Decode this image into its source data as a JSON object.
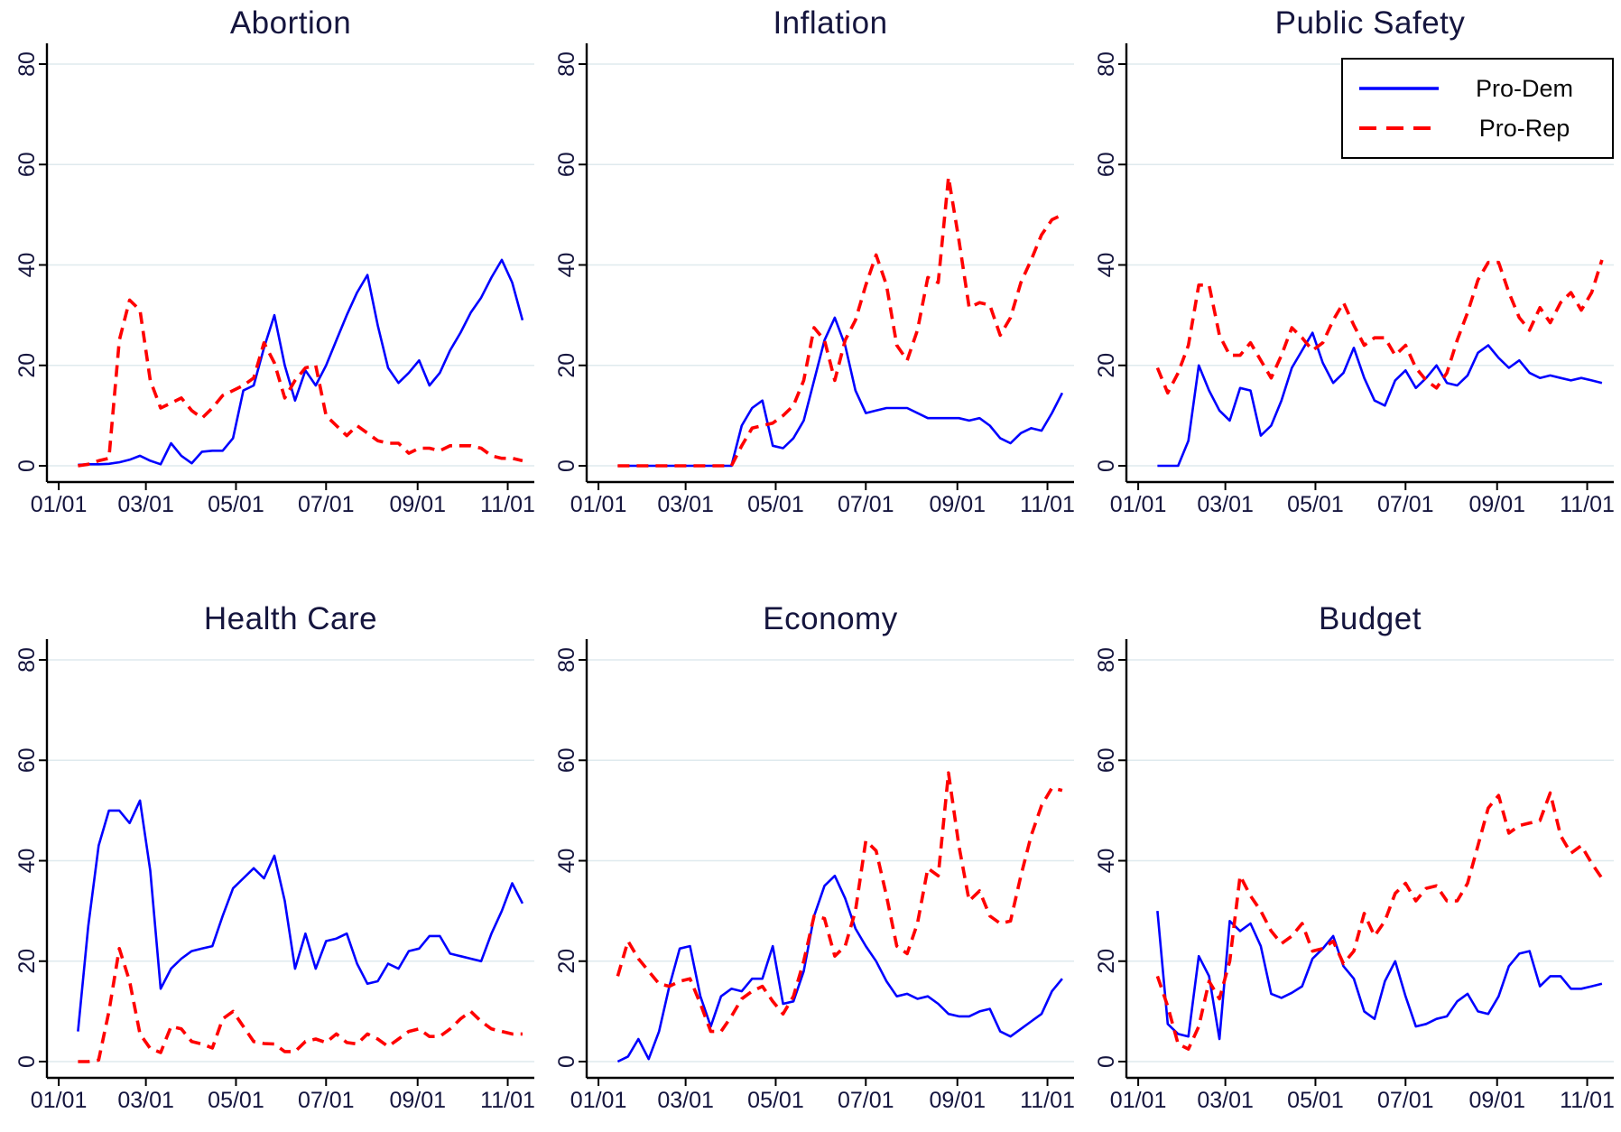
{
  "page": {
    "background": "#ffffff"
  },
  "legend": {
    "items": [
      {
        "label": "Pro-Dem",
        "color": "#0000ff",
        "line_style": "solid"
      },
      {
        "label": "Pro-Rep",
        "color": "#ff0000",
        "line_style": "dashed"
      }
    ]
  },
  "axes": {
    "y_ticks": [
      0,
      20,
      40,
      60,
      80
    ],
    "y_max": 84,
    "x_tick_labels": [
      "01/01",
      "03/01",
      "05/01",
      "07/01",
      "09/01",
      "11/01"
    ],
    "x_tick_days": [
      0,
      59,
      120,
      181,
      243,
      304
    ],
    "grid": "horizontal",
    "grid_color": "#dfeaee",
    "text_color": "#15153e"
  },
  "chart_data": [
    {
      "type": "line",
      "title": "Abortion",
      "x_unit": "day of year (weekly samples)",
      "start_day": 13,
      "step_days": 7,
      "ylim": [
        0,
        84
      ],
      "series": [
        {
          "name": "Pro-Dem",
          "values": [
            0.2,
            0.3,
            0.3,
            0.4,
            0.7,
            1.2,
            2,
            1,
            0.3,
            4.5,
            2,
            0.5,
            2.8,
            3,
            3,
            5.5,
            15,
            16,
            23.5,
            30,
            20,
            13,
            19,
            16,
            20,
            25,
            30,
            34.5,
            38,
            28,
            19.5,
            16.5,
            18.5,
            21,
            16,
            18.5,
            23,
            26.5,
            30.5,
            33.5,
            37.5,
            41,
            36.5,
            29
          ]
        },
        {
          "name": "Pro-Rep",
          "values": [
            0,
            0.3,
            1,
            1.5,
            25,
            33,
            31,
            17,
            11.5,
            12.5,
            13.5,
            11,
            9.5,
            11.5,
            14,
            15,
            16,
            17.5,
            24.5,
            20.5,
            13.5,
            17,
            19.5,
            20,
            10,
            8,
            6,
            8,
            6.5,
            5,
            4.5,
            4.5,
            2.5,
            3.5,
            3.5,
            3,
            4,
            4,
            4,
            3.5,
            2,
            1.5,
            1.5,
            1
          ]
        }
      ]
    },
    {
      "type": "line",
      "title": "Inflation",
      "x_unit": "day of year (weekly samples)",
      "start_day": 13,
      "step_days": 7,
      "ylim": [
        0,
        84
      ],
      "series": [
        {
          "name": "Pro-Dem",
          "values": [
            0,
            0,
            0,
            0,
            0,
            0,
            0,
            0,
            0,
            0,
            0,
            0,
            8,
            11.5,
            13,
            4,
            3.5,
            5.5,
            9,
            17,
            25,
            29.5,
            24,
            15,
            10.5,
            11,
            11.5,
            11.5,
            11.5,
            10.5,
            9.5,
            9.5,
            9.5,
            9.5,
            9,
            9.5,
            8,
            5.5,
            4.5,
            6.5,
            7.5,
            7,
            10.5,
            14.5
          ]
        },
        {
          "name": "Pro-Rep",
          "values": [
            0,
            0,
            0,
            0,
            0,
            0,
            0,
            0,
            0,
            0,
            0,
            0,
            4,
            7.5,
            8,
            8.5,
            10,
            12,
            17,
            27.5,
            25,
            17,
            25,
            29,
            36,
            42,
            36,
            24,
            21,
            27,
            37.5,
            36.5,
            57.5,
            45,
            31.5,
            32.5,
            32,
            26,
            29.5,
            36.5,
            41,
            46,
            49,
            50
          ]
        }
      ]
    },
    {
      "type": "line",
      "title": "Public Safety",
      "x_unit": "day of year (weekly samples)",
      "start_day": 13,
      "step_days": 7,
      "ylim": [
        0,
        84
      ],
      "has_legend": true,
      "series": [
        {
          "name": "Pro-Dem",
          "values": [
            0,
            0,
            0,
            5,
            20,
            15,
            11,
            9,
            15.5,
            15,
            6,
            8,
            13,
            19.5,
            23,
            26.5,
            20.5,
            16.5,
            18.5,
            23.5,
            17.5,
            13,
            12,
            17,
            19,
            15.5,
            17.5,
            20,
            16.5,
            16,
            18,
            22.5,
            24,
            21.5,
            19.5,
            21,
            18.5,
            17.5,
            18,
            17.5,
            17,
            17.5,
            17,
            16.5
          ]
        },
        {
          "name": "Pro-Rep",
          "values": [
            19.5,
            14.5,
            18.5,
            24,
            36,
            36,
            26,
            22,
            22,
            24.5,
            21,
            17.5,
            22,
            27.5,
            25.5,
            23,
            24.5,
            29,
            32.5,
            28,
            24,
            25.5,
            25.5,
            22,
            24,
            19.5,
            17,
            15.5,
            18.5,
            25,
            30.5,
            37,
            40.5,
            40.5,
            34.5,
            29.5,
            27,
            31.5,
            28.5,
            32.5,
            34.5,
            31,
            34.5,
            41
          ]
        }
      ]
    },
    {
      "type": "line",
      "title": "Health Care",
      "x_unit": "day of year (weekly samples)",
      "start_day": 13,
      "step_days": 7,
      "ylim": [
        0,
        84
      ],
      "series": [
        {
          "name": "Pro-Dem",
          "values": [
            6,
            27,
            43,
            50,
            50,
            47.5,
            52,
            38,
            14.5,
            18.5,
            20.5,
            22,
            22.5,
            23,
            29,
            34.5,
            36.5,
            38.5,
            36.5,
            41,
            32,
            18.5,
            25.5,
            18.5,
            24,
            24.5,
            25.5,
            19.5,
            15.5,
            16,
            19.5,
            18.5,
            22,
            22.5,
            25,
            25,
            21.5,
            21,
            20.5,
            20,
            25.5,
            30,
            35.5,
            31.5
          ]
        },
        {
          "name": "Pro-Rep",
          "values": [
            0,
            0,
            0.3,
            10,
            22.5,
            16,
            5.5,
            2.6,
            1.8,
            7,
            6.5,
            4,
            3.5,
            2.7,
            8.5,
            10,
            7,
            4,
            3.6,
            3.5,
            2,
            2,
            4,
            4.5,
            3.8,
            5.5,
            3.8,
            3.5,
            5.5,
            4.5,
            3,
            4.5,
            6,
            6.5,
            5,
            5,
            6.5,
            8.5,
            10,
            8,
            6.5,
            6,
            5.5,
            5.5
          ]
        }
      ]
    },
    {
      "type": "line",
      "title": "Economy",
      "x_unit": "day of year (weekly samples)",
      "start_day": 13,
      "step_days": 7,
      "ylim": [
        0,
        84
      ],
      "series": [
        {
          "name": "Pro-Dem",
          "values": [
            0,
            1,
            4.5,
            0.5,
            6,
            15,
            22.5,
            23,
            13,
            7,
            13,
            14.5,
            14,
            16.5,
            16.5,
            23,
            11.5,
            12,
            18,
            29,
            35,
            37,
            32.5,
            26.5,
            23,
            20,
            16,
            13,
            13.5,
            12.5,
            13,
            11.5,
            9.5,
            9,
            9,
            10,
            10.5,
            6,
            5,
            6.5,
            8,
            9.5,
            14,
            16.5
          ]
        },
        {
          "name": "Pro-Rep",
          "values": [
            17,
            24,
            20.5,
            18,
            15.5,
            15,
            16,
            16.5,
            11.5,
            6,
            6,
            9,
            12.5,
            14,
            15,
            12,
            9.5,
            13,
            20,
            29,
            28.5,
            21,
            23,
            30,
            44,
            42,
            33,
            23,
            21.5,
            27.5,
            38.5,
            37,
            57.5,
            43,
            32,
            34,
            29,
            27.5,
            28,
            37,
            45,
            51,
            54.5,
            54
          ]
        }
      ]
    },
    {
      "type": "line",
      "title": "Budget",
      "x_unit": "day of year (weekly samples)",
      "start_day": 13,
      "step_days": 7,
      "ylim": [
        0,
        84
      ],
      "series": [
        {
          "name": "Pro-Dem",
          "values": [
            30,
            7.5,
            5.5,
            5,
            21,
            17,
            4.5,
            28,
            26,
            27.5,
            23,
            13.5,
            12.7,
            13.7,
            15,
            20.5,
            22.5,
            25,
            19,
            16.5,
            10,
            8.5,
            16,
            20,
            13,
            7,
            7.5,
            8.5,
            9,
            12,
            13.5,
            10,
            9.5,
            13,
            19,
            21.5,
            22,
            15,
            17,
            17,
            14.5,
            14.5,
            15,
            15.5
          ]
        },
        {
          "name": "Pro-Rep",
          "values": [
            17,
            11,
            3.5,
            2.5,
            7,
            16,
            12.5,
            20,
            37,
            33,
            30,
            26,
            23.5,
            25,
            27.5,
            22,
            22.5,
            24,
            19.5,
            22,
            29.5,
            25,
            28,
            33.5,
            35.5,
            32,
            34.5,
            35,
            32,
            32,
            35.5,
            43,
            50.5,
            53,
            45.5,
            47,
            47.5,
            48,
            53.5,
            45,
            41.5,
            43,
            39.5,
            36.5
          ]
        }
      ]
    }
  ]
}
